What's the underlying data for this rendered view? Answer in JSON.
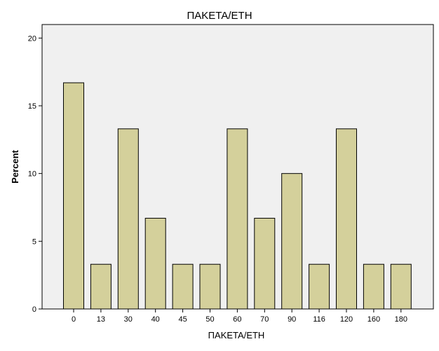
{
  "chart_data": {
    "type": "bar",
    "title": "ΠΑΚΕΤΑ/ΕΤΗ",
    "xlabel": "ΠΑΚΕΤΑ/ΕΤΗ",
    "ylabel": "Percent",
    "categories": [
      "0",
      "13",
      "30",
      "40",
      "45",
      "50",
      "60",
      "70",
      "90",
      "116",
      "120",
      "160",
      "180"
    ],
    "values": [
      16.7,
      3.3,
      13.3,
      6.7,
      3.3,
      3.3,
      13.3,
      6.7,
      10.0,
      3.3,
      13.3,
      3.3,
      3.3
    ],
    "ylim": [
      0,
      21
    ],
    "yticks": [
      0,
      5,
      10,
      15,
      20
    ],
    "grid": false,
    "colors": {
      "bar_fill": "#d4d09b",
      "bar_stroke": "#000000",
      "plot_background": "#f0f0f0",
      "page_background": "#ffffff"
    }
  }
}
